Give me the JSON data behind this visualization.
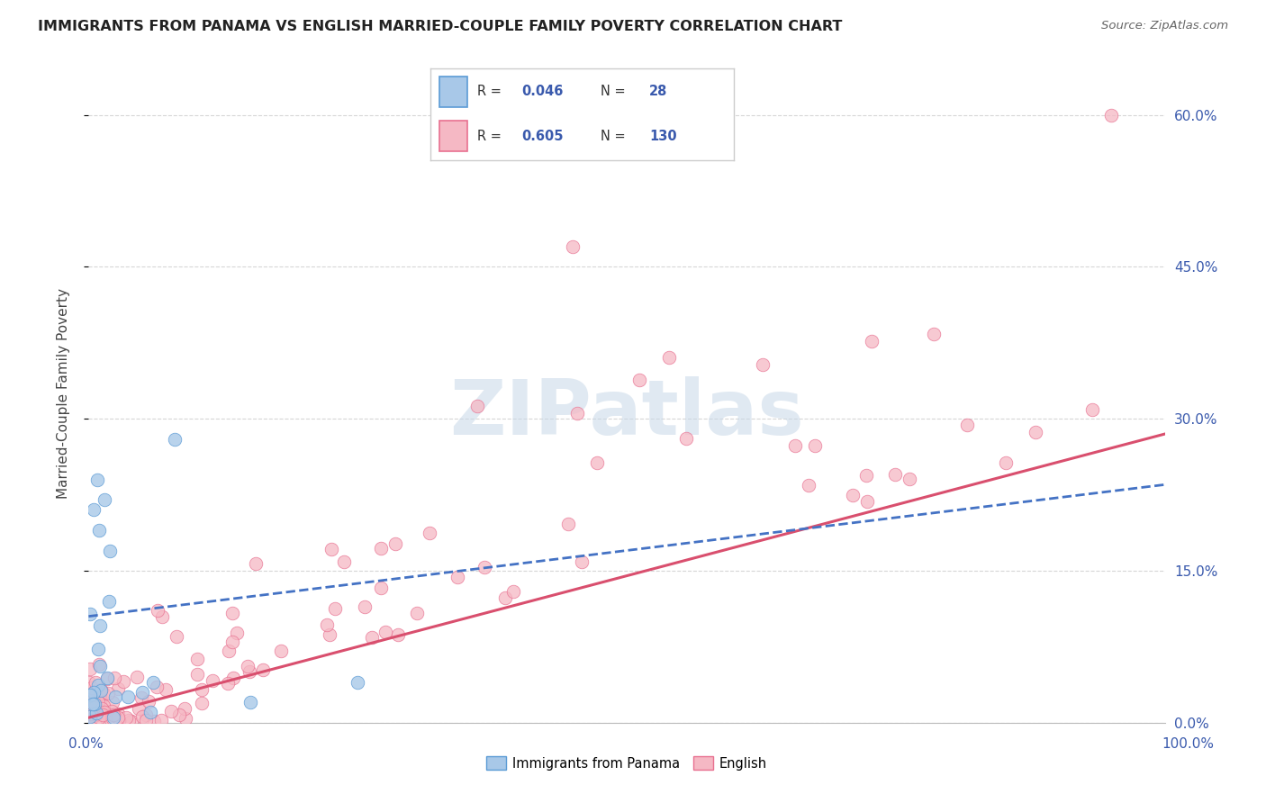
{
  "title": "IMMIGRANTS FROM PANAMA VS ENGLISH MARRIED-COUPLE FAMILY POVERTY CORRELATION CHART",
  "source": "Source: ZipAtlas.com",
  "ylabel": "Married-Couple Family Poverty",
  "legend_labels": [
    "Immigrants from Panama",
    "English"
  ],
  "blue_R": 0.046,
  "blue_N": 28,
  "pink_R": 0.605,
  "pink_N": 130,
  "blue_color": "#a8c8e8",
  "pink_color": "#f5b8c4",
  "blue_edge_color": "#5b9bd5",
  "pink_edge_color": "#e87090",
  "blue_line_color": "#4472c4",
  "pink_line_color": "#d94f6e",
  "watermark_color": "#c8d8e8",
  "xlim": [
    0,
    100
  ],
  "ylim": [
    0,
    0.65
  ],
  "ytick_vals": [
    0.0,
    0.15,
    0.3,
    0.45,
    0.6
  ],
  "ytick_labels": [
    "0.0%",
    "15.0%",
    "30.0%",
    "45.0%",
    "60.0%"
  ],
  "grid_color": "#cccccc",
  "background_color": "#ffffff",
  "title_color": "#222222",
  "source_color": "#666666",
  "label_color": "#3a5aad"
}
